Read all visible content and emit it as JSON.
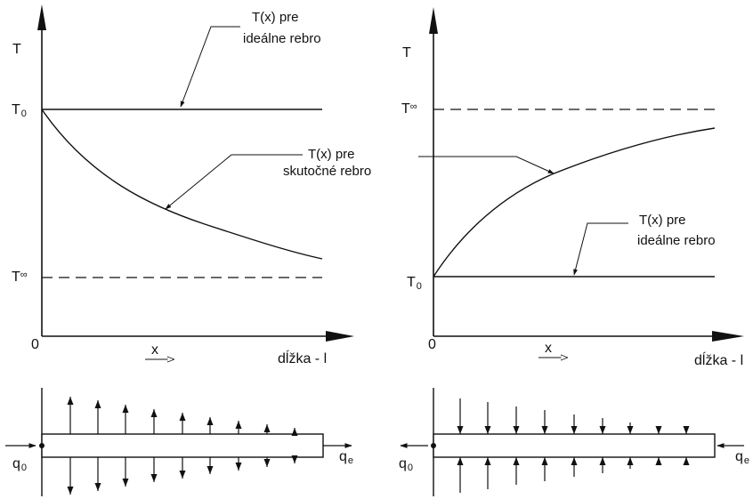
{
  "left_graph": {
    "y_axis_label": "T",
    "origin_label": "0",
    "t0_label_main": "T",
    "t0_label_sub": "0",
    "tinf_label_main": "T",
    "tinf_label_sub": "∞",
    "x_label": "x",
    "length_label": "dĺžka - l",
    "ideal_annotation": [
      "T(x) pre",
      "ideálne rebro"
    ],
    "real_annotation": [
      "T(x) pre",
      "skutočné rebro"
    ]
  },
  "right_graph": {
    "y_axis_label": "T",
    "origin_label": "0",
    "t0_label_main": "T",
    "t0_label_sub": "0",
    "tinf_label_main": "T",
    "tinf_label_sub": "∞",
    "x_label": "x",
    "length_label": "dĺžka - l",
    "ideal_annotation": [
      "T(x) pre",
      "ideálne rebro"
    ]
  },
  "left_fin": {
    "q0_main": "q",
    "q0_sub": "0",
    "qe_main": "q",
    "qe_sub": "e",
    "heat_flow_direction": "outward"
  },
  "right_fin": {
    "q0_main": "q",
    "q0_sub": "0",
    "qe_main": "q",
    "qe_sub": "e",
    "heat_flow_direction": "inward"
  }
}
